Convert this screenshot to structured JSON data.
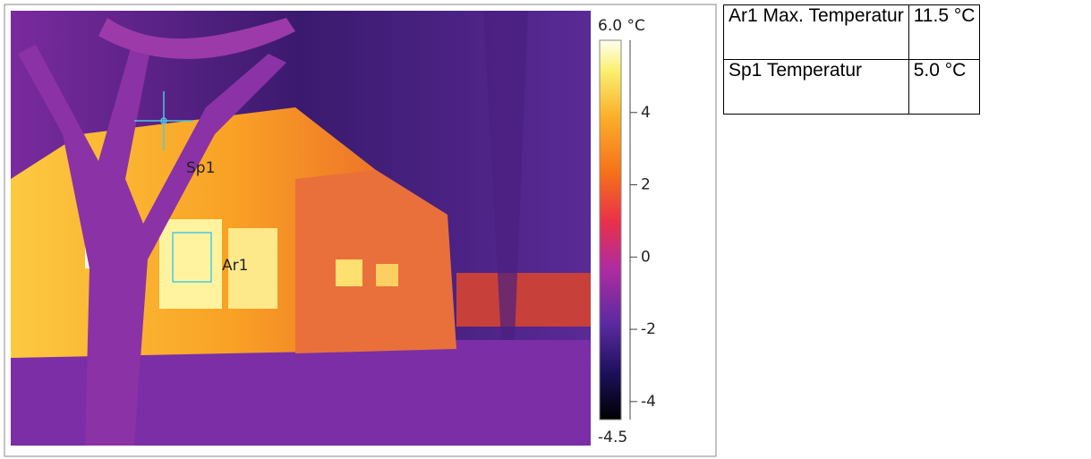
{
  "colorbar": {
    "lim": [
      {
        "value": -4.5,
        "label": "-4.5"
      },
      {
        "value": 6.0,
        "label": "6.0 °C"
      }
    ],
    "ticks": [
      4,
      2,
      0,
      -2,
      -4
    ]
  },
  "markers": [
    {
      "label": "Sp1"
    },
    {
      "label": "Ar1"
    }
  ],
  "table": {
    "rows": [
      [
        "Ar1 Max. Temperatur",
        "11.5 °C"
      ],
      [
        "Sp1 Temperatur",
        "5.0 °C"
      ]
    ]
  }
}
